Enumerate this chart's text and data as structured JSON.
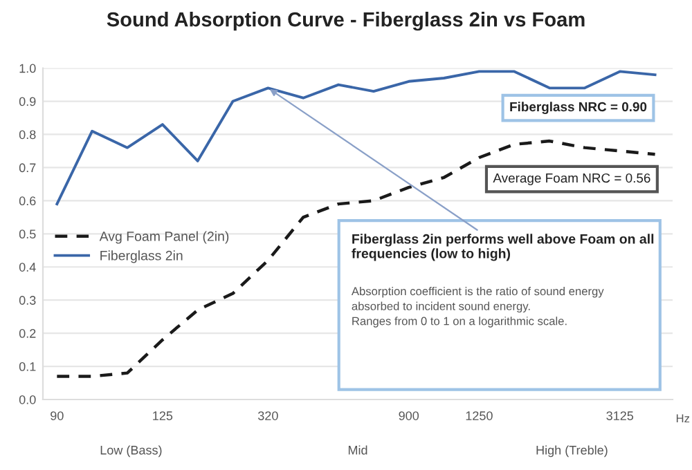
{
  "chart_data": {
    "type": "line",
    "title": "Sound Absorption Curve - Fiberglass 2in vs Foam",
    "categories": [
      "90",
      null,
      null,
      "125",
      null,
      null,
      "320",
      null,
      null,
      null,
      "900",
      null,
      "1250",
      null,
      null,
      null,
      "3125",
      null
    ],
    "series": [
      {
        "name": "Avg Foam Panel (2in)",
        "color": "#1a1a1a",
        "line_style": "dashed",
        "values": [
          0.07,
          0.07,
          0.08,
          0.18,
          0.27,
          0.32,
          0.42,
          0.55,
          0.59,
          0.6,
          0.64,
          0.67,
          0.73,
          0.77,
          0.78,
          0.76,
          0.75,
          0.74
        ]
      },
      {
        "name": "Fiberglass 2in",
        "color": "#3a66a8",
        "line_style": "solid",
        "values": [
          0.59,
          0.81,
          0.76,
          0.83,
          0.72,
          0.9,
          0.94,
          0.91,
          0.95,
          0.93,
          0.96,
          0.97,
          0.99,
          0.99,
          0.94,
          0.94,
          0.99,
          0.98
        ]
      }
    ],
    "ylim": [
      0,
      1.0
    ],
    "yticks": [
      {
        "value": 0,
        "label": "0.0"
      },
      0.1,
      0.2,
      0.3,
      0.4,
      0.5,
      0.6,
      0.7,
      0.8,
      0.9,
      {
        "value": 1.0,
        "label": "1.0"
      }
    ],
    "grid": "y",
    "legend": "center left",
    "marker": "none",
    "annotations": [
      "Fiberglass NRC = 0.90",
      "Average Foam NRC = 0.56",
      {
        "text": "Fiberglass 2in performs well above Foam on all frequencies (low to high)",
        "x": "320",
        "y": 0.94
      },
      "Absorption coefficient is the ratio of sound energy\nabsorbed to incident sound energy.\nRanges from 0 to 1 on a logarithmic scale.",
      "Hz",
      "Low (Bass)",
      "Mid",
      "High (Treble)"
    ]
  }
}
